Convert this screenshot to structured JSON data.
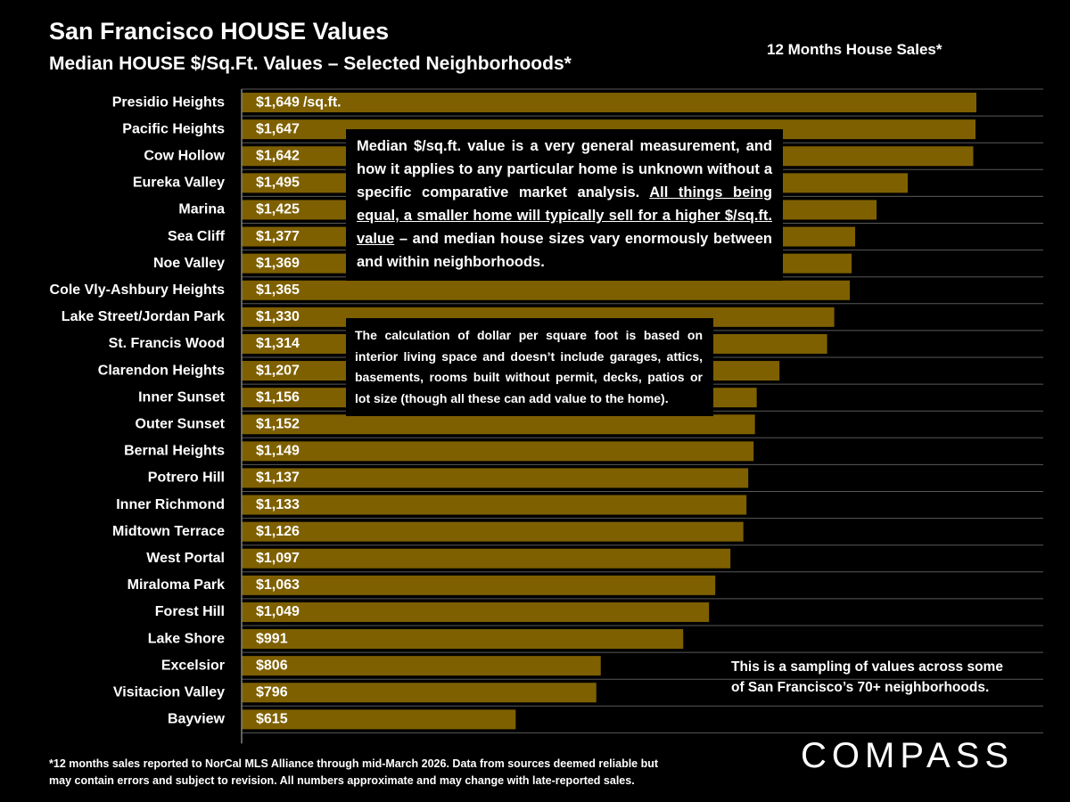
{
  "chart_data": {
    "type": "bar",
    "orientation": "horizontal",
    "title": "San Francisco HOUSE Values",
    "subtitle": "Median HOUSE $/Sq.Ft. Values – Selected Neighborhoods*",
    "period_label": "12 Months House Sales*",
    "color": "#7f6000",
    "categories": [
      "Presidio Heights",
      "Pacific Heights",
      "Cow Hollow",
      "Eureka Valley",
      "Marina",
      "Sea Cliff",
      "Noe Valley",
      "Cole Vly-Ashbury Heights",
      "Lake Street/Jordan Park",
      "St. Francis Wood",
      "Clarendon Heights",
      "Inner Sunset",
      "Outer Sunset",
      "Bernal Heights",
      "Potrero Hill",
      "Inner Richmond",
      "Midtown Terrace",
      "West Portal",
      "Miraloma Park",
      "Forest Hill",
      "Lake Shore",
      "Excelsior",
      "Visitacion Valley",
      "Bayview"
    ],
    "values": [
      1649,
      1647,
      1642,
      1495,
      1425,
      1377,
      1369,
      1365,
      1330,
      1314,
      1207,
      1156,
      1152,
      1149,
      1137,
      1133,
      1126,
      1097,
      1063,
      1049,
      991,
      806,
      796,
      615
    ],
    "value_labels": [
      "$1,649",
      "$1,647",
      "$1,642",
      "$1,495",
      "$1,425",
      "$1,377",
      "$1,369",
      "$1,365",
      "$1,330",
      "$1,314",
      "$1,207",
      "$1,156",
      "$1,152",
      "$1,149",
      "$1,137",
      "$1,133",
      "$1,126",
      "$1,097",
      "$1,063",
      "$1,049",
      "$991",
      "$806",
      "$796",
      "$615"
    ],
    "unit_label": "/sq.ft.",
    "note_1": {
      "before": "Median $/sq.ft. value is a very general measurement, and how it applies to any particular home is unknown without a specific comparative market analysis. ",
      "underlined": "All things being equal, a smaller home will typically sell for a higher $/sq.ft. value",
      "after": " – and median house sizes vary enormously between and within neighborhoods."
    },
    "note_2": "The calculation of dollar per square foot is based on interior living space and doesn’t include garages, attics, basements, rooms built without permit, decks, patios or lot size (though all these can add value to the home).",
    "sampling_note": [
      "This is a sampling of values across some",
      "of San Francisco’s 70+ neighborhoods."
    ],
    "footnote": [
      "*12 months sales reported to NorCal MLS Alliance through mid-March 2026. Data from sources deemed reliable but",
      "may contain errors and subject to revision. All numbers approximate and may change with late-reported sales."
    ],
    "logo": "COMPASS"
  }
}
